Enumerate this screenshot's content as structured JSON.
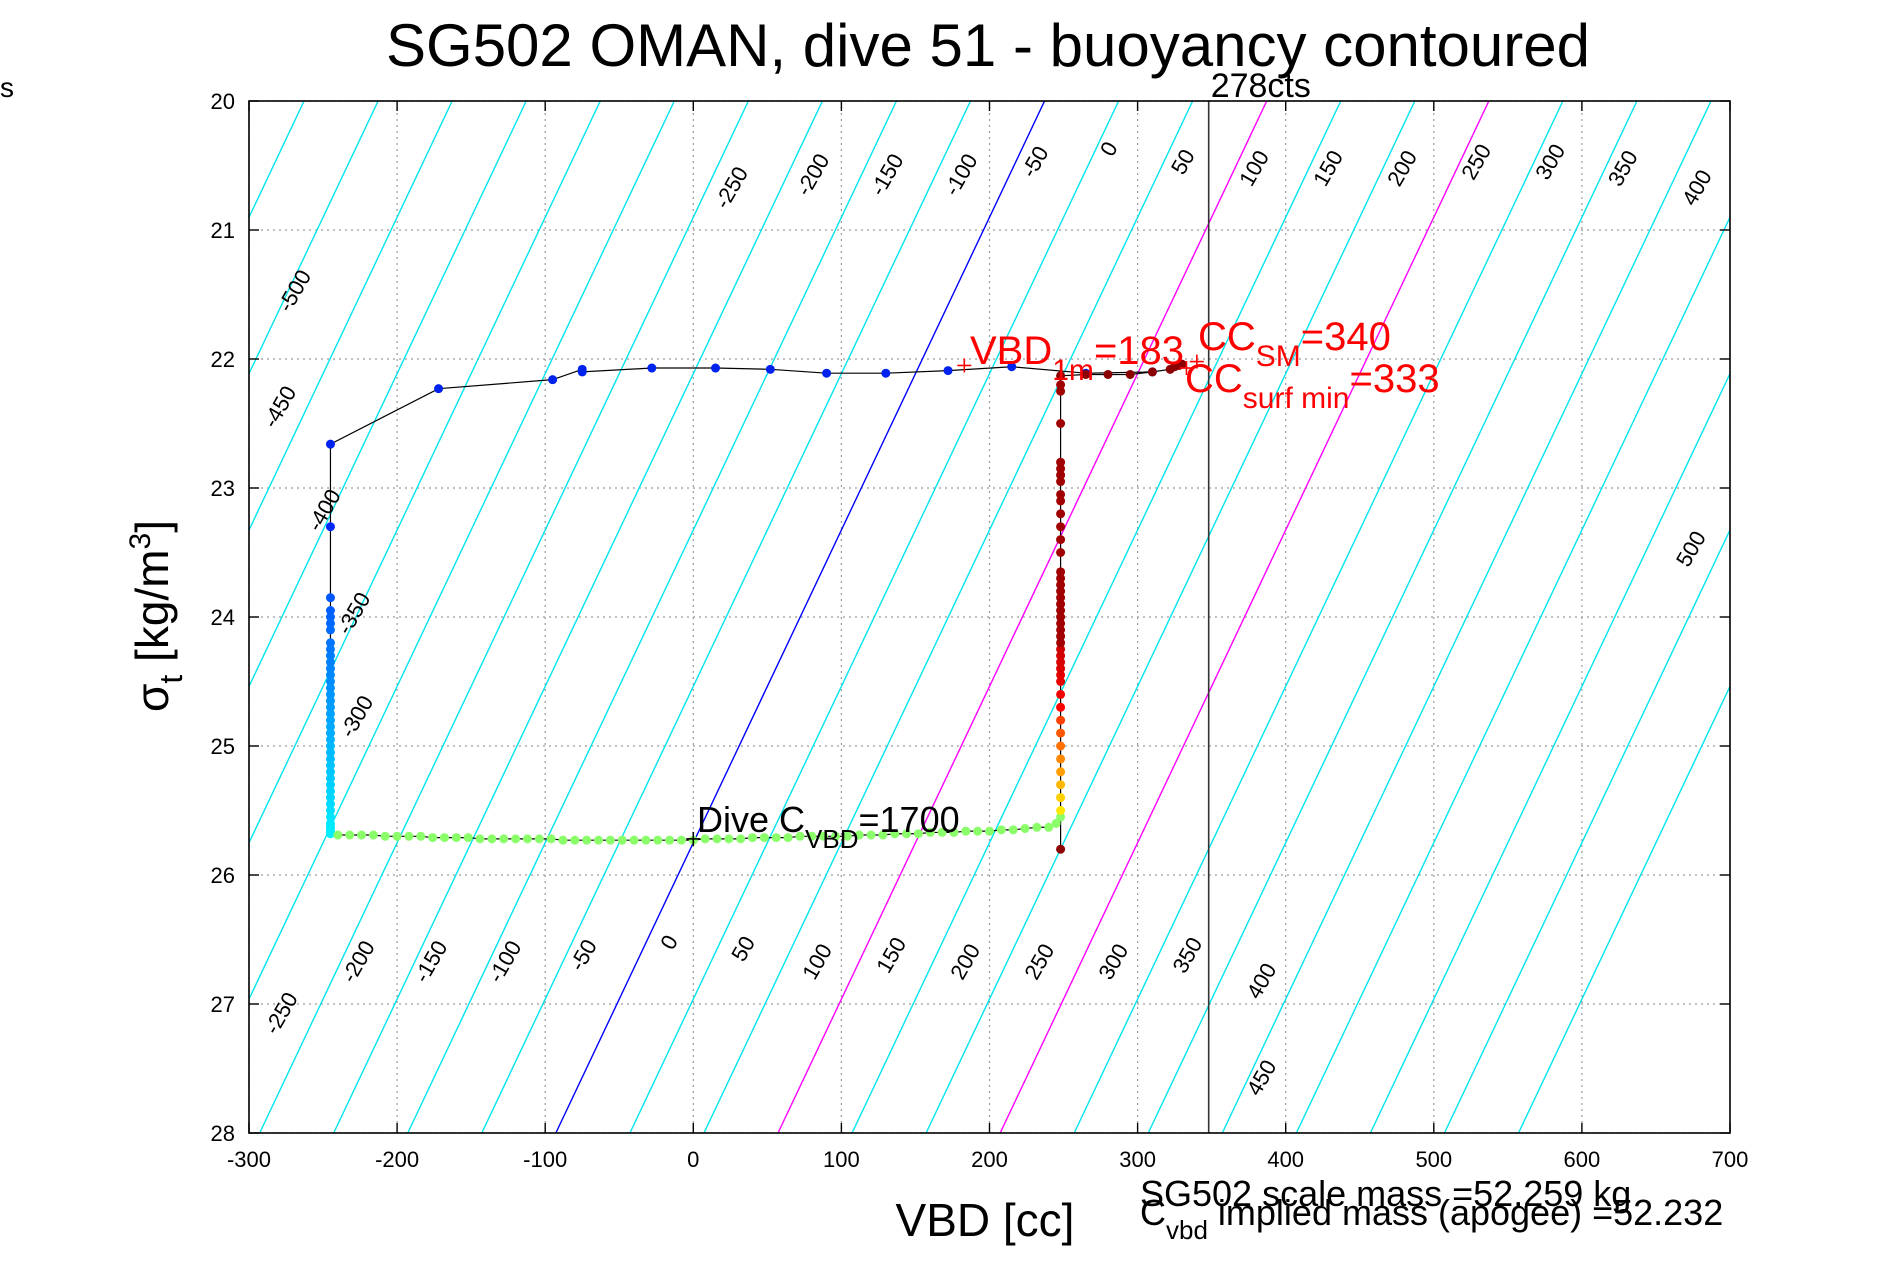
{
  "stray_label": "s",
  "chart_data": {
    "type": "scatter",
    "title": "SG502 OMAN, dive 51 - buoyancy contoured",
    "xlabel": "VBD [cc]",
    "ylabel": "σ",
    "ylabel_sub": "t",
    "ylabel_rest": " [kg/m",
    "ylabel_sup": "3",
    "ylabel_close": "]",
    "xlim": [
      -300,
      700
    ],
    "ylim": [
      20,
      28
    ],
    "y_reversed": true,
    "grid": true,
    "xticks": [
      -300,
      -200,
      -100,
      0,
      100,
      200,
      300,
      400,
      500,
      600,
      700
    ],
    "yticks": [
      20,
      21,
      22,
      23,
      24,
      25,
      26,
      27,
      28
    ],
    "contour_levels": [
      -550,
      -500,
      -450,
      -400,
      -350,
      -300,
      -250,
      -200,
      -150,
      -100,
      -50,
      0,
      50,
      100,
      150,
      200,
      250,
      300,
      350,
      400,
      450,
      500,
      550,
      600,
      650
    ],
    "contour_style": {
      "slope_cc_per_sigma": 41.25,
      "colors": {
        "default": "#00e5ee",
        "zero": "#0000ff",
        "highlight": "#ff00ff"
      },
      "highlight_levels": [
        150,
        300
      ]
    },
    "contour_labels": [
      {
        "text": "-500",
        "x": -265,
        "y": 21.5
      },
      {
        "text": "-450",
        "x": -275,
        "y": 22.4
      },
      {
        "text": "-400",
        "x": -245,
        "y": 23.2
      },
      {
        "text": "-350",
        "x": -225,
        "y": 24.0
      },
      {
        "text": "-300",
        "x": -223,
        "y": 24.8
      },
      {
        "text": "-250",
        "x": 30,
        "y": 20.7
      },
      {
        "text": "-200",
        "x": 85,
        "y": 20.6
      },
      {
        "text": "-150",
        "x": 135,
        "y": 20.6
      },
      {
        "text": "-100",
        "x": 185,
        "y": 20.6
      },
      {
        "text": "-50",
        "x": 235,
        "y": 20.5
      },
      {
        "text": "0",
        "x": 285,
        "y": 20.4
      },
      {
        "text": "50",
        "x": 335,
        "y": 20.5
      },
      {
        "text": "100",
        "x": 383,
        "y": 20.55
      },
      {
        "text": "150",
        "x": 433,
        "y": 20.55
      },
      {
        "text": "200",
        "x": 483,
        "y": 20.55
      },
      {
        "text": "250",
        "x": 533,
        "y": 20.5
      },
      {
        "text": "300",
        "x": 583,
        "y": 20.5
      },
      {
        "text": "350",
        "x": 632,
        "y": 20.55
      },
      {
        "text": "400",
        "x": 682,
        "y": 20.7
      },
      {
        "text": "500",
        "x": 678,
        "y": 23.5
      },
      {
        "text": "-250",
        "x": -274,
        "y": 27.1
      },
      {
        "text": "-200",
        "x": -222,
        "y": 26.7
      },
      {
        "text": "-150",
        "x": -173,
        "y": 26.7
      },
      {
        "text": "-100",
        "x": -123,
        "y": 26.7
      },
      {
        "text": "-50",
        "x": -70,
        "y": 26.65
      },
      {
        "text": "0",
        "x": -12,
        "y": 26.55
      },
      {
        "text": "50",
        "x": 38,
        "y": 26.6
      },
      {
        "text": "100",
        "x": 88,
        "y": 26.7
      },
      {
        "text": "150",
        "x": 138,
        "y": 26.65
      },
      {
        "text": "200",
        "x": 188,
        "y": 26.7
      },
      {
        "text": "250",
        "x": 238,
        "y": 26.7
      },
      {
        "text": "300",
        "x": 288,
        "y": 26.7
      },
      {
        "text": "350",
        "x": 338,
        "y": 26.65
      },
      {
        "text": "400",
        "x": 388,
        "y": 26.85
      },
      {
        "text": "450",
        "x": 388,
        "y": 27.6
      }
    ],
    "vertical_line": {
      "x": 348,
      "label": "278cts"
    },
    "annotations": [
      {
        "name": "vbd-1m",
        "x": 183,
        "y": 22.05,
        "color": "#ff0000",
        "parts": [
          "VBD",
          "1m",
          "=183"
        ]
      },
      {
        "name": "cc-sm",
        "x": 340,
        "y": 22.02,
        "color": "#ff0000",
        "parts": [
          "CC",
          "SM",
          "=340"
        ]
      },
      {
        "name": "cc-surf-min",
        "x": 333,
        "y": 22.07,
        "color": "#ff0000",
        "parts": [
          "CC",
          "surf min",
          "=333"
        ]
      },
      {
        "name": "dive-cvbd",
        "x": 0,
        "y": 25.72,
        "color": "#000000",
        "parts": [
          "Dive C",
          "VBD",
          "=1700"
        ]
      }
    ],
    "bottom_text": {
      "scale_mass": "SG502 scale mass =52.259 kg",
      "implied_mass_main": "C",
      "implied_mass_sub": "vbd",
      "implied_mass_rest": " implied mass (apogee) =52.232"
    },
    "series": [
      {
        "segment": "dive-descent",
        "x": [
          -245,
          -245,
          -245,
          -245,
          -245,
          -245,
          -245,
          -245,
          -245,
          -245,
          -245,
          -245,
          -245,
          -245,
          -245,
          -245,
          -245,
          -245,
          -245,
          -245,
          -245,
          -245,
          -245,
          -245,
          -245,
          -245,
          -245,
          -245,
          -245,
          -245,
          -245,
          -245,
          -245,
          -245,
          -245,
          -245,
          -245,
          -245,
          -245
        ],
        "y": [
          23.3,
          23.85,
          23.95,
          24.0,
          24.05,
          24.1,
          24.2,
          24.25,
          24.3,
          24.35,
          24.4,
          24.45,
          24.5,
          24.55,
          24.6,
          24.65,
          24.7,
          24.75,
          24.8,
          24.85,
          24.9,
          24.95,
          25.0,
          25.05,
          25.1,
          25.15,
          25.2,
          25.25,
          25.3,
          25.35,
          25.4,
          25.45,
          25.5,
          25.55,
          25.6,
          25.62,
          25.64,
          25.66,
          25.68
        ]
      },
      {
        "segment": "bottom-pump",
        "x": [
          -240,
          -232,
          -224,
          -216,
          -208,
          -200,
          -192,
          -184,
          -176,
          -168,
          -160,
          -152,
          -144,
          -136,
          -128,
          -120,
          -112,
          -104,
          -96,
          -88,
          -80,
          -72,
          -64,
          -56,
          -48,
          -40,
          -32,
          -24,
          -16,
          -8,
          0,
          8,
          16,
          24,
          32,
          40,
          48,
          56,
          64,
          72,
          80,
          88,
          96,
          104,
          112,
          120,
          128,
          136,
          144,
          152,
          160,
          168,
          176,
          184,
          192,
          200,
          208,
          216,
          224,
          232,
          240,
          245,
          248
        ],
        "y": [
          25.69,
          25.69,
          25.69,
          25.69,
          25.7,
          25.7,
          25.7,
          25.7,
          25.71,
          25.71,
          25.71,
          25.71,
          25.72,
          25.72,
          25.72,
          25.72,
          25.72,
          25.72,
          25.72,
          25.73,
          25.73,
          25.73,
          25.73,
          25.73,
          25.73,
          25.73,
          25.73,
          25.73,
          25.73,
          25.73,
          25.73,
          25.72,
          25.72,
          25.72,
          25.72,
          25.71,
          25.71,
          25.71,
          25.71,
          25.7,
          25.7,
          25.7,
          25.7,
          25.7,
          25.69,
          25.69,
          25.69,
          25.68,
          25.68,
          25.68,
          25.67,
          25.67,
          25.67,
          25.66,
          25.66,
          25.66,
          25.65,
          25.65,
          25.64,
          25.63,
          25.63,
          25.6,
          25.55
        ]
      },
      {
        "segment": "climb-ascent",
        "x": [
          248,
          248,
          248,
          248,
          248,
          248,
          248,
          248,
          248,
          248,
          248,
          248,
          248,
          248,
          248,
          248,
          248,
          248,
          248,
          248,
          248,
          248,
          248,
          248,
          248,
          248,
          248,
          248,
          248,
          248,
          248,
          248,
          248,
          248,
          248,
          248,
          248,
          248,
          248,
          248,
          248,
          248
        ],
        "y": [
          25.5,
          25.4,
          25.3,
          25.2,
          25.1,
          25.0,
          24.9,
          24.8,
          24.7,
          24.6,
          24.5,
          24.45,
          24.4,
          24.35,
          24.3,
          24.25,
          24.2,
          24.15,
          24.1,
          24.05,
          24.0,
          23.95,
          23.9,
          23.85,
          23.8,
          23.75,
          23.7,
          23.65,
          23.5,
          23.4,
          23.3,
          23.2,
          23.1,
          23.05,
          22.95,
          22.9,
          22.85,
          22.8,
          22.5,
          22.25,
          22.2,
          25.8
        ]
      },
      {
        "segment": "climb-surface",
        "x": [
          248,
          265,
          280,
          295,
          310,
          322,
          325,
          328,
          330
        ],
        "y": [
          22.13,
          22.12,
          22.12,
          22.12,
          22.1,
          22.08,
          22.06,
          22.05,
          22.04
        ]
      },
      {
        "segment": "dive-surface",
        "x": [
          310,
          265,
          215,
          172,
          130,
          90,
          52,
          15,
          -28,
          -75,
          -75,
          -95,
          -172,
          -245
        ],
        "y": [
          22.1,
          22.11,
          22.06,
          22.09,
          22.11,
          22.11,
          22.08,
          22.07,
          22.07,
          22.1,
          22.08,
          22.16,
          22.23,
          22.66
        ]
      }
    ]
  }
}
